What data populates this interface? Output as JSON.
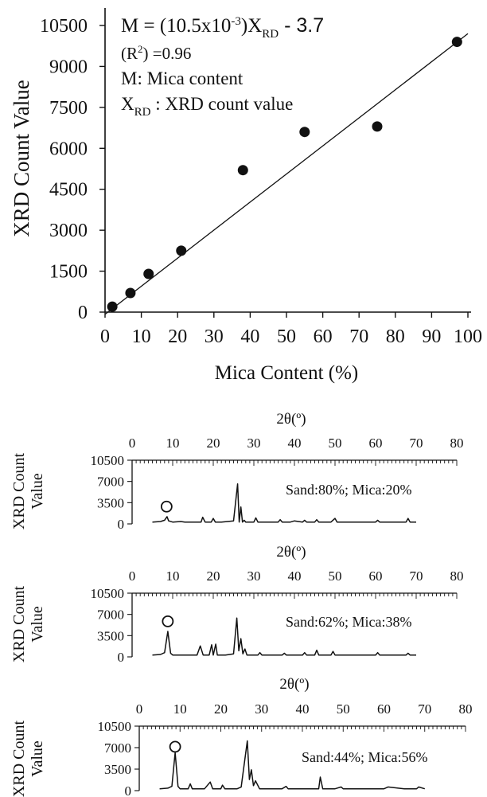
{
  "chart_data": [
    {
      "type": "scatter",
      "xlabel": "Mica Content (%)",
      "ylabel": "XRD Count Value",
      "xlim": [
        0,
        100
      ],
      "ylim": [
        0,
        10500
      ],
      "xticks": [
        0,
        10,
        20,
        30,
        40,
        50,
        60,
        70,
        80,
        90,
        100
      ],
      "yticks": [
        0,
        1500,
        3000,
        4500,
        6000,
        7500,
        9000,
        10500
      ],
      "series": [
        {
          "points": [
            {
              "x": 2,
              "y": 200
            },
            {
              "x": 7,
              "y": 700
            },
            {
              "x": 12,
              "y": 1400
            },
            {
              "x": 21,
              "y": 2250
            },
            {
              "x": 38,
              "y": 5200
            },
            {
              "x": 55,
              "y": 6600
            },
            {
              "x": 75,
              "y": 6800
            },
            {
              "x": 97,
              "y": 9900
            }
          ]
        }
      ],
      "fit_line": {
        "x_start": 0,
        "y_start": -80,
        "x_end": 100,
        "y_end": 10200
      },
      "annotation": {
        "equation_prefix": "M = (10.5x10",
        "equation_exp": "-3",
        "equation_mid": ")X",
        "equation_sub": "RD",
        "equation_suffix": " - 3.7",
        "r2_prefix": "(R",
        "r2_exp": "2",
        "r2_suffix": ") =0.96",
        "mica_def": "M: Mica content",
        "xrd_def_prefix": "X",
        "xrd_def_sub": "RD",
        "xrd_def_suffix": " : XRD count value"
      }
    },
    {
      "type": "line",
      "title": "2θ(º)",
      "ylabel_line1": "XRD Count",
      "ylabel_line2": "Value",
      "label": "Sand:80%; Mica:20%",
      "xlim": [
        0,
        80
      ],
      "ylim": [
        0,
        10500
      ],
      "xticks": [
        0,
        10,
        20,
        30,
        40,
        50,
        60,
        70,
        80
      ],
      "yticks": [
        0,
        3500,
        7000,
        10500
      ],
      "marker": {
        "x": 8.5,
        "y": 2200
      },
      "x": [
        5,
        7,
        8,
        8.6,
        9,
        10,
        12,
        13,
        17,
        17.4,
        18,
        19.5,
        20,
        20.5,
        22,
        25,
        26,
        26.4,
        26.8,
        27.2,
        27.6,
        28,
        29,
        30,
        30.5,
        31,
        34,
        36,
        36.5,
        37,
        39,
        40,
        42,
        42.5,
        43,
        45,
        45.5,
        46,
        49,
        50,
        50.5,
        51,
        55,
        56,
        60,
        60.5,
        61,
        64,
        67.5,
        68,
        68.5,
        70
      ],
      "y": [
        300,
        400,
        600,
        1200,
        500,
        300,
        400,
        300,
        300,
        1100,
        300,
        300,
        900,
        300,
        300,
        500,
        6600,
        300,
        2800,
        300,
        600,
        300,
        300,
        300,
        1000,
        300,
        300,
        300,
        700,
        300,
        300,
        500,
        300,
        600,
        300,
        300,
        700,
        300,
        300,
        900,
        300,
        300,
        300,
        300,
        300,
        600,
        300,
        300,
        300,
        900,
        300,
        300
      ]
    },
    {
      "type": "line",
      "title": "2θ(º)",
      "ylabel_line1": "XRD Count",
      "ylabel_line2": "Value",
      "label": "Sand:62%; Mica:38%",
      "xlim": [
        0,
        80
      ],
      "ylim": [
        0,
        10500
      ],
      "xticks": [
        0,
        10,
        20,
        30,
        40,
        50,
        60,
        70,
        80
      ],
      "yticks": [
        0,
        3500,
        7000,
        10500
      ],
      "marker": {
        "x": 8.8,
        "y": 5200
      },
      "x": [
        5,
        7,
        8,
        8.8,
        9.5,
        10,
        12,
        13,
        16,
        16.8,
        17.5,
        19,
        19.6,
        20,
        20.6,
        21,
        23,
        25,
        25.8,
        26.3,
        26.8,
        27.3,
        27.8,
        28.3,
        30,
        31,
        31.5,
        32,
        36,
        37,
        37.5,
        38,
        40,
        42,
        42.5,
        43,
        45,
        45.5,
        46,
        48,
        49,
        49.5,
        50,
        55,
        56,
        60,
        60.5,
        61,
        64,
        67.5,
        68,
        68.5,
        70
      ],
      "y": [
        300,
        400,
        700,
        4200,
        600,
        300,
        300,
        300,
        300,
        1800,
        300,
        300,
        2000,
        300,
        2100,
        300,
        300,
        500,
        6400,
        1000,
        3000,
        500,
        1300,
        300,
        300,
        300,
        700,
        300,
        300,
        300,
        600,
        300,
        300,
        300,
        700,
        300,
        300,
        1100,
        300,
        300,
        300,
        900,
        300,
        300,
        300,
        300,
        700,
        300,
        300,
        300,
        600,
        300,
        300
      ]
    },
    {
      "type": "line",
      "title": "2θ(º)",
      "ylabel_line1": "XRD Count",
      "ylabel_line2": "Value",
      "label": "Sand:44%; Mica:56%",
      "xlim": [
        0,
        80
      ],
      "ylim": [
        0,
        10500
      ],
      "xticks": [
        0,
        10,
        20,
        30,
        40,
        50,
        60,
        70,
        80
      ],
      "yticks": [
        0,
        3500,
        7000,
        10500
      ],
      "marker": {
        "x": 8.8,
        "y": 6500
      },
      "x": [
        5,
        7,
        8,
        8.8,
        9.5,
        10,
        12,
        12.5,
        13,
        16,
        17.4,
        18,
        20,
        20.4,
        21,
        24,
        25,
        26.5,
        27,
        27.5,
        28,
        28.5,
        29.5,
        30,
        35,
        36,
        36.5,
        40,
        42,
        44,
        44.4,
        45,
        48,
        49.5,
        50,
        55,
        56,
        60,
        61,
        65,
        68,
        68.5,
        70
      ],
      "y": [
        300,
        400,
        700,
        6200,
        700,
        300,
        300,
        1100,
        300,
        300,
        1400,
        300,
        300,
        900,
        300,
        300,
        600,
        8100,
        1800,
        3400,
        800,
        1600,
        300,
        300,
        300,
        700,
        300,
        300,
        300,
        300,
        2200,
        300,
        300,
        600,
        300,
        300,
        300,
        300,
        600,
        300,
        300,
        600,
        300
      ]
    }
  ]
}
